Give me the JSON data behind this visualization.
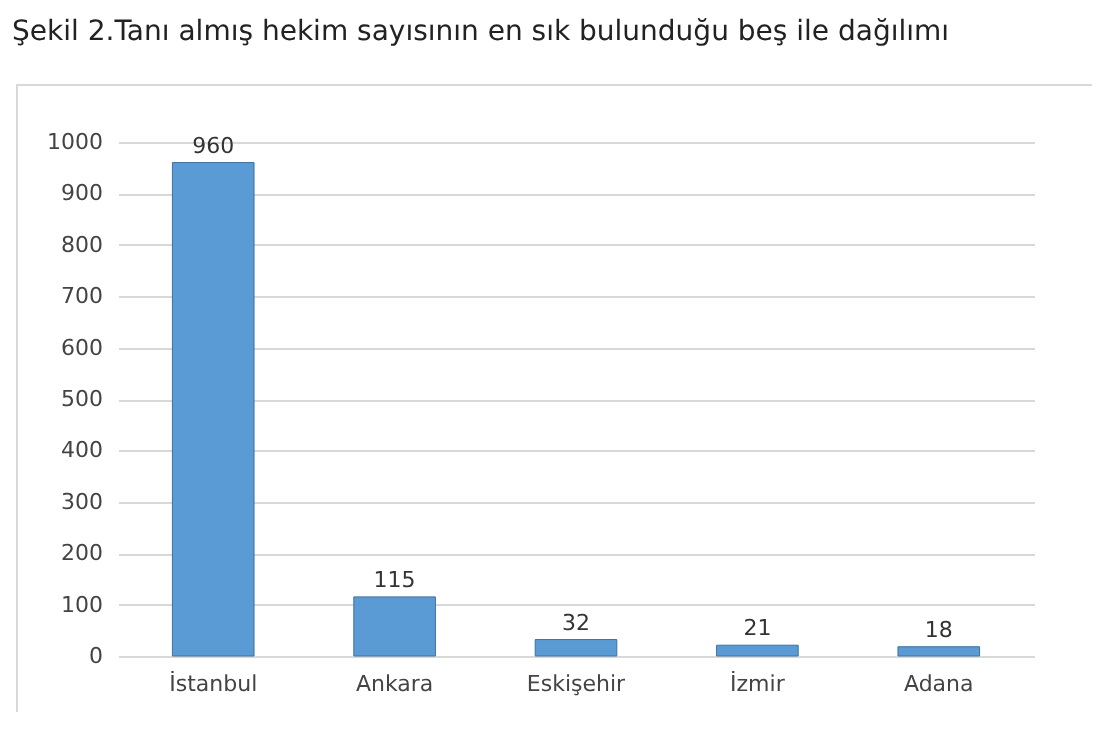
{
  "chart_data": {
    "type": "bar",
    "title": "Şekil 2.Tanı almış hekim sayısının en sık bulunduğu beş ile dağılımı",
    "categories": [
      "İstanbul",
      "Ankara",
      "Eskişehir",
      "İzmir",
      "Adana"
    ],
    "values": [
      960,
      115,
      32,
      21,
      18
    ],
    "color": "#5b9bd5",
    "ylim": [
      0,
      1000
    ],
    "yticks": [
      0,
      100,
      200,
      300,
      400,
      500,
      600,
      700,
      800,
      900,
      1000
    ],
    "grid": "y",
    "data_labels": true
  }
}
